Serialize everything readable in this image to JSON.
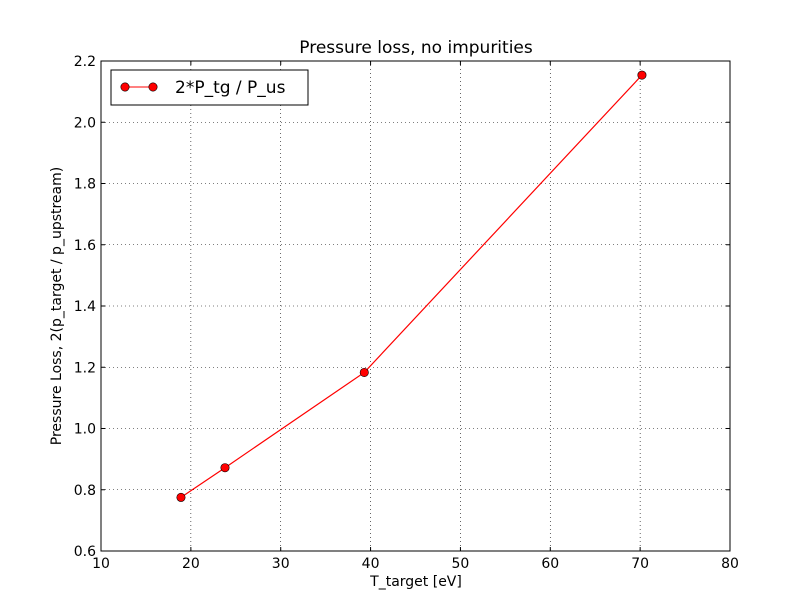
{
  "chart_data": {
    "type": "line",
    "title": "Pressure loss, no impurities",
    "xlabel": "T_target [eV]",
    "ylabel": "Pressure Loss, 2(p_target / p_upstream)",
    "xlim": [
      10,
      80
    ],
    "ylim": [
      0.6,
      2.2
    ],
    "xticks": [
      10,
      20,
      30,
      40,
      50,
      60,
      70,
      80
    ],
    "yticks": [
      0.6,
      0.8,
      1.0,
      1.2,
      1.4,
      1.6,
      1.8,
      2.0,
      2.2
    ],
    "xtick_labels": [
      "10",
      "20",
      "30",
      "40",
      "50",
      "60",
      "70",
      "80"
    ],
    "ytick_labels": [
      "0.6",
      "0.8",
      "1.0",
      "1.2",
      "1.4",
      "1.6",
      "1.8",
      "2.0",
      "2.2"
    ],
    "grid": true,
    "legend_position": "top-left",
    "series": [
      {
        "name": "2*P_tg / P_us",
        "color": "#ff0000",
        "marker": "circle",
        "x": [
          18.9,
          23.8,
          39.3,
          70.2
        ],
        "y": [
          0.775,
          0.872,
          1.183,
          2.154
        ]
      }
    ]
  }
}
